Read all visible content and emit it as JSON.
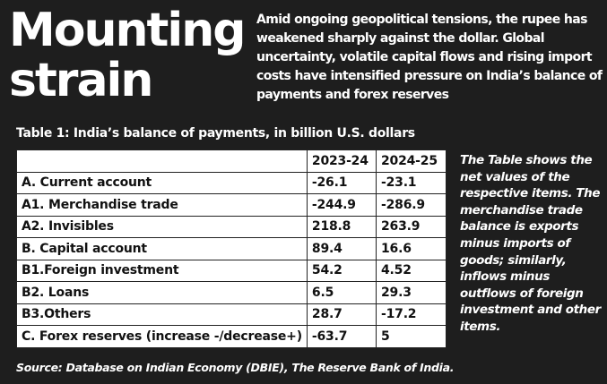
{
  "headline": {
    "line1": "Mounting",
    "line2": "strain"
  },
  "intro": "Amid ongoing geopolitical tensions, the rupee has weakened sharply against the dollar. Global uncertainty, volatile capital flows and rising import costs have intensified pressure on India’s balance of payments and forex reserves",
  "table": {
    "caption": "Table 1: India’s balance of payments, in billion U.S. dollars",
    "headers": [
      "",
      "2023-24",
      "2024-25"
    ],
    "rows": [
      {
        "label": "A. Current account",
        "v2023": "-26.1",
        "v2024": "-23.1"
      },
      {
        "label": "A1. Merchandise trade",
        "v2023": "-244.9",
        "v2024": "-286.9"
      },
      {
        "label": "A2. Invisibles",
        "v2023": "218.8",
        "v2024": "263.9"
      },
      {
        "label": "B. Capital account",
        "v2023": "89.4",
        "v2024": "16.6"
      },
      {
        "label": "B1.Foreign investment",
        "v2023": "54.2",
        "v2024": "4.52"
      },
      {
        "label": "B2. Loans",
        "v2023": "6.5",
        "v2024": "29.3"
      },
      {
        "label": "B3.Others",
        "v2023": "28.7",
        "v2024": "-17.2"
      },
      {
        "label": "C. Forex reserves (increase -/decrease+)",
        "v2023": "-63.7",
        "v2024": "5"
      }
    ]
  },
  "note": "The Table shows the net values of the respective items. The merchandise trade balance is exports minus imports of goods; similarly, inflows minus outflows of foreign investment and other items.",
  "source": "Source: Database on Indian Economy (DBIE), The Reserve Bank of India."
}
